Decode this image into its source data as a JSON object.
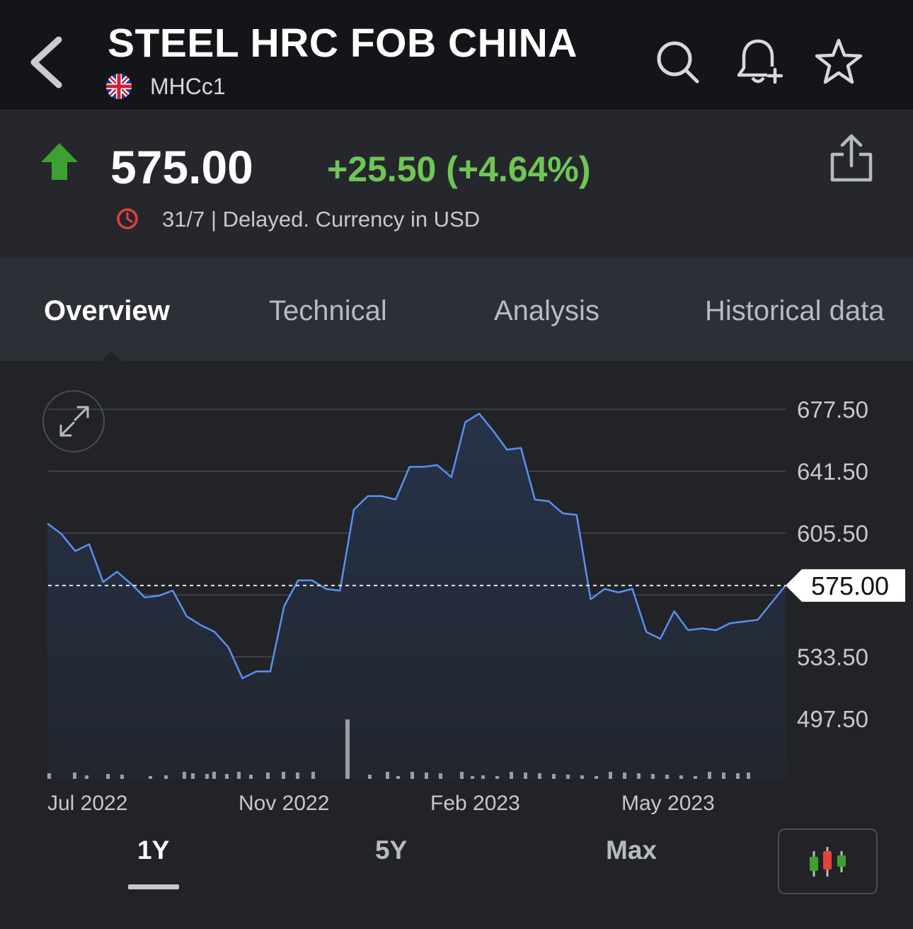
{
  "header": {
    "title": "STEEL HRC FOB CHINA",
    "ticker": "MHCc1"
  },
  "quote": {
    "price": "575.00",
    "change": "+25.50 (+4.64%)",
    "meta": "31/7 | Delayed. Currency in USD",
    "up_color": "#3ea12f",
    "change_color": "#6fc655"
  },
  "tabs": [
    {
      "label": "Overview",
      "active": true
    },
    {
      "label": "Technical",
      "active": false
    },
    {
      "label": "Analysis",
      "active": false
    },
    {
      "label": "Historical data",
      "active": false
    }
  ],
  "chart_data": {
    "type": "area",
    "line_color": "#5b8ff0",
    "y_ticks": [
      "677.50",
      "641.50",
      "605.50",
      "533.50",
      "497.50"
    ],
    "current_label": "575.00",
    "x_ticks": [
      "Jul 2022",
      "Nov 2022",
      "Feb 2023",
      "May 2023"
    ],
    "ylim": [
      497.5,
      677.5
    ],
    "values": [
      611,
      605,
      595,
      599,
      577,
      583,
      576,
      568,
      569,
      572,
      557,
      552,
      548,
      539,
      521,
      525,
      525,
      563,
      578,
      578,
      573,
      572,
      619,
      627,
      627,
      625,
      644,
      644,
      645,
      638,
      670,
      675,
      665,
      654,
      655,
      625,
      624,
      617,
      616,
      567,
      573,
      571,
      573,
      548,
      544,
      560,
      549,
      550,
      549,
      553,
      554,
      555,
      565,
      575
    ]
  },
  "ranges": [
    {
      "label": "1Y",
      "active": true
    },
    {
      "label": "5Y",
      "active": false
    },
    {
      "label": "Max",
      "active": false
    }
  ]
}
